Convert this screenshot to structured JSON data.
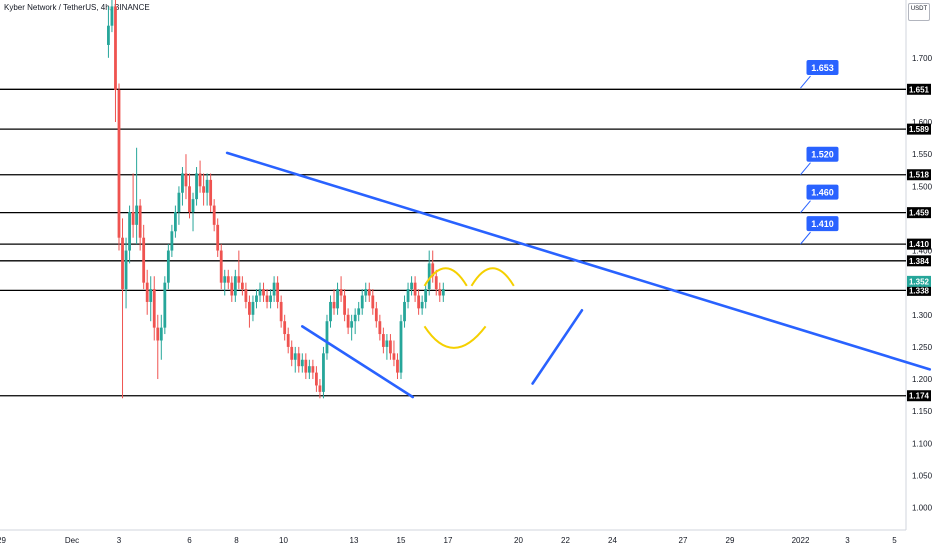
{
  "chart_data": {
    "type": "candlestick",
    "title": "Kyber Network / TetherUS, 4h, BINANCE",
    "currency": "USDT",
    "ylim": [
      0.965,
      1.79
    ],
    "y_ticks": [
      1.7,
      1.6,
      1.55,
      1.5,
      1.4,
      1.3,
      1.25,
      1.2,
      1.15,
      1.1,
      1.05,
      1.0
    ],
    "x_ticks": [
      {
        "label": "29",
        "day": -2
      },
      {
        "label": "Dec",
        "day": 1
      },
      {
        "label": "3",
        "day": 3
      },
      {
        "label": "6",
        "day": 6
      },
      {
        "label": "8",
        "day": 8
      },
      {
        "label": "10",
        "day": 10
      },
      {
        "label": "13",
        "day": 13
      },
      {
        "label": "15",
        "day": 15
      },
      {
        "label": "17",
        "day": 17
      },
      {
        "label": "20",
        "day": 20
      },
      {
        "label": "22",
        "day": 22
      },
      {
        "label": "24",
        "day": 24
      },
      {
        "label": "27",
        "day": 27
      },
      {
        "label": "29",
        "day": 29
      },
      {
        "label": "2022",
        "day": 32
      },
      {
        "label": "3",
        "day": 34
      },
      {
        "label": "5",
        "day": 36
      }
    ],
    "horizontal_levels": [
      1.651,
      1.589,
      1.518,
      1.459,
      1.41,
      1.384,
      1.338,
      1.174
    ],
    "current_price": {
      "value": 1.352,
      "label": "1.352"
    },
    "callouts": [
      {
        "label": "1.653",
        "day": 32,
        "value": 1.653
      },
      {
        "label": "1.520",
        "day": 32,
        "value": 1.518
      },
      {
        "label": "1.460",
        "day": 32,
        "value": 1.459
      },
      {
        "label": "1.410",
        "day": 32,
        "value": 1.41
      }
    ],
    "trendlines": [
      {
        "points": [
          [
            7.6,
            1.552
          ],
          [
            37.5,
            1.215
          ]
        ],
        "color": "#2962ff"
      },
      {
        "points": [
          [
            10.8,
            1.282
          ],
          [
            15.5,
            1.172
          ]
        ],
        "color": "#2962ff"
      },
      {
        "points": [
          [
            20.6,
            1.193
          ],
          [
            22.7,
            1.307
          ]
        ],
        "color": "#2962ff"
      }
    ],
    "arcs": [
      {
        "from": [
          16.0,
          1.345
        ],
        "control": [
          16.9,
          1.4
        ],
        "to": [
          17.8,
          1.345
        ],
        "color": "#f5d000"
      },
      {
        "from": [
          16.0,
          1.282
        ],
        "control": [
          17.2,
          1.215
        ],
        "to": [
          18.6,
          1.282
        ],
        "color": "#f5d000"
      },
      {
        "from": [
          18.0,
          1.345
        ],
        "control": [
          18.9,
          1.4
        ],
        "to": [
          19.8,
          1.345
        ],
        "color": "#f5d000"
      }
    ],
    "series": [
      {
        "values": [
          [
            2.55,
            1.72,
            1.78,
            1.7,
            1.75
          ],
          [
            2.7,
            1.75,
            1.8,
            1.74,
            1.78
          ],
          [
            2.85,
            1.78,
            1.8,
            1.6,
            1.65
          ],
          [
            3.0,
            1.65,
            1.66,
            1.4,
            1.42
          ],
          [
            3.15,
            1.42,
            1.45,
            1.17,
            1.34
          ],
          [
            3.3,
            1.34,
            1.42,
            1.31,
            1.4
          ],
          [
            3.45,
            1.4,
            1.47,
            1.38,
            1.46
          ],
          [
            3.6,
            1.46,
            1.52,
            1.42,
            1.44
          ],
          [
            3.75,
            1.44,
            1.56,
            1.41,
            1.47
          ],
          [
            3.9,
            1.47,
            1.48,
            1.4,
            1.42
          ],
          [
            4.05,
            1.42,
            1.44,
            1.34,
            1.35
          ],
          [
            4.2,
            1.35,
            1.37,
            1.3,
            1.32
          ],
          [
            4.35,
            1.32,
            1.36,
            1.29,
            1.34
          ],
          [
            4.5,
            1.34,
            1.36,
            1.26,
            1.28
          ],
          [
            4.65,
            1.28,
            1.3,
            1.2,
            1.26
          ],
          [
            4.8,
            1.26,
            1.3,
            1.23,
            1.28
          ],
          [
            4.95,
            1.28,
            1.36,
            1.27,
            1.35
          ],
          [
            5.1,
            1.35,
            1.41,
            1.34,
            1.4
          ],
          [
            5.25,
            1.4,
            1.44,
            1.39,
            1.43
          ],
          [
            5.4,
            1.43,
            1.47,
            1.42,
            1.46
          ],
          [
            5.55,
            1.46,
            1.5,
            1.44,
            1.49
          ],
          [
            5.7,
            1.49,
            1.53,
            1.47,
            1.52
          ],
          [
            5.85,
            1.52,
            1.55,
            1.48,
            1.5
          ],
          [
            6.0,
            1.5,
            1.52,
            1.45,
            1.46
          ],
          [
            6.15,
            1.46,
            1.49,
            1.43,
            1.48
          ],
          [
            6.3,
            1.48,
            1.53,
            1.47,
            1.52
          ],
          [
            6.45,
            1.52,
            1.54,
            1.49,
            1.5
          ],
          [
            6.6,
            1.5,
            1.52,
            1.47,
            1.49
          ],
          [
            6.75,
            1.49,
            1.52,
            1.47,
            1.51
          ],
          [
            6.9,
            1.51,
            1.52,
            1.46,
            1.47
          ],
          [
            7.05,
            1.47,
            1.48,
            1.43,
            1.44
          ],
          [
            7.2,
            1.44,
            1.45,
            1.39,
            1.4
          ],
          [
            7.35,
            1.4,
            1.41,
            1.34,
            1.35
          ],
          [
            7.5,
            1.35,
            1.37,
            1.33,
            1.36
          ],
          [
            7.65,
            1.36,
            1.37,
            1.34,
            1.35
          ],
          [
            7.8,
            1.35,
            1.36,
            1.32,
            1.33
          ],
          [
            7.95,
            1.33,
            1.37,
            1.32,
            1.36
          ],
          [
            8.1,
            1.36,
            1.4,
            1.34,
            1.35
          ],
          [
            8.25,
            1.35,
            1.36,
            1.33,
            1.34
          ],
          [
            8.4,
            1.34,
            1.35,
            1.31,
            1.32
          ],
          [
            8.55,
            1.32,
            1.33,
            1.28,
            1.3
          ],
          [
            8.7,
            1.3,
            1.33,
            1.29,
            1.32
          ],
          [
            8.85,
            1.32,
            1.34,
            1.31,
            1.33
          ],
          [
            9.0,
            1.33,
            1.35,
            1.32,
            1.34
          ],
          [
            9.15,
            1.34,
            1.35,
            1.32,
            1.33
          ],
          [
            9.3,
            1.33,
            1.34,
            1.31,
            1.32
          ],
          [
            9.45,
            1.32,
            1.34,
            1.31,
            1.33
          ],
          [
            9.6,
            1.33,
            1.36,
            1.32,
            1.35
          ],
          [
            9.75,
            1.35,
            1.36,
            1.31,
            1.32
          ],
          [
            9.9,
            1.32,
            1.33,
            1.28,
            1.29
          ],
          [
            10.05,
            1.29,
            1.3,
            1.26,
            1.27
          ],
          [
            10.2,
            1.27,
            1.28,
            1.24,
            1.25
          ],
          [
            10.35,
            1.25,
            1.26,
            1.22,
            1.23
          ],
          [
            10.5,
            1.23,
            1.25,
            1.21,
            1.24
          ],
          [
            10.65,
            1.24,
            1.25,
            1.21,
            1.22
          ],
          [
            10.8,
            1.22,
            1.24,
            1.21,
            1.23
          ],
          [
            10.95,
            1.23,
            1.24,
            1.2,
            1.21
          ],
          [
            11.1,
            1.21,
            1.23,
            1.2,
            1.22
          ],
          [
            11.25,
            1.22,
            1.23,
            1.2,
            1.21
          ],
          [
            11.4,
            1.21,
            1.22,
            1.18,
            1.19
          ],
          [
            11.55,
            1.19,
            1.2,
            1.17,
            1.18
          ],
          [
            11.7,
            1.18,
            1.25,
            1.17,
            1.24
          ],
          [
            11.85,
            1.24,
            1.3,
            1.23,
            1.29
          ],
          [
            12.0,
            1.29,
            1.33,
            1.28,
            1.32
          ],
          [
            12.15,
            1.32,
            1.34,
            1.3,
            1.31
          ],
          [
            12.3,
            1.31,
            1.35,
            1.3,
            1.34
          ],
          [
            12.45,
            1.34,
            1.36,
            1.32,
            1.33
          ],
          [
            12.6,
            1.33,
            1.34,
            1.29,
            1.3
          ],
          [
            12.75,
            1.3,
            1.31,
            1.27,
            1.28
          ],
          [
            12.9,
            1.28,
            1.3,
            1.26,
            1.29
          ],
          [
            13.05,
            1.29,
            1.31,
            1.27,
            1.3
          ],
          [
            13.2,
            1.3,
            1.32,
            1.29,
            1.31
          ],
          [
            13.35,
            1.31,
            1.34,
            1.3,
            1.33
          ],
          [
            13.5,
            1.33,
            1.35,
            1.32,
            1.34
          ],
          [
            13.65,
            1.34,
            1.35,
            1.32,
            1.33
          ],
          [
            13.8,
            1.33,
            1.34,
            1.3,
            1.31
          ],
          [
            13.95,
            1.31,
            1.32,
            1.28,
            1.29
          ],
          [
            14.1,
            1.29,
            1.3,
            1.26,
            1.27
          ],
          [
            14.25,
            1.27,
            1.28,
            1.24,
            1.25
          ],
          [
            14.4,
            1.25,
            1.27,
            1.23,
            1.26
          ],
          [
            14.55,
            1.26,
            1.27,
            1.23,
            1.24
          ],
          [
            14.7,
            1.24,
            1.26,
            1.22,
            1.23
          ],
          [
            14.85,
            1.23,
            1.24,
            1.2,
            1.21
          ],
          [
            15.0,
            1.21,
            1.3,
            1.2,
            1.29
          ],
          [
            15.15,
            1.29,
            1.33,
            1.28,
            1.32
          ],
          [
            15.3,
            1.32,
            1.35,
            1.31,
            1.34
          ],
          [
            15.45,
            1.34,
            1.36,
            1.33,
            1.35
          ],
          [
            15.6,
            1.35,
            1.36,
            1.32,
            1.33
          ],
          [
            15.75,
            1.33,
            1.34,
            1.3,
            1.31
          ],
          [
            15.9,
            1.31,
            1.33,
            1.3,
            1.32
          ],
          [
            16.05,
            1.32,
            1.35,
            1.31,
            1.34
          ],
          [
            16.2,
            1.34,
            1.4,
            1.33,
            1.38
          ],
          [
            16.35,
            1.38,
            1.4,
            1.35,
            1.36
          ],
          [
            16.5,
            1.36,
            1.37,
            1.33,
            1.34
          ],
          [
            16.65,
            1.34,
            1.35,
            1.32,
            1.33
          ],
          [
            16.8,
            1.33,
            1.35,
            1.32,
            1.34
          ]
        ]
      }
    ]
  }
}
